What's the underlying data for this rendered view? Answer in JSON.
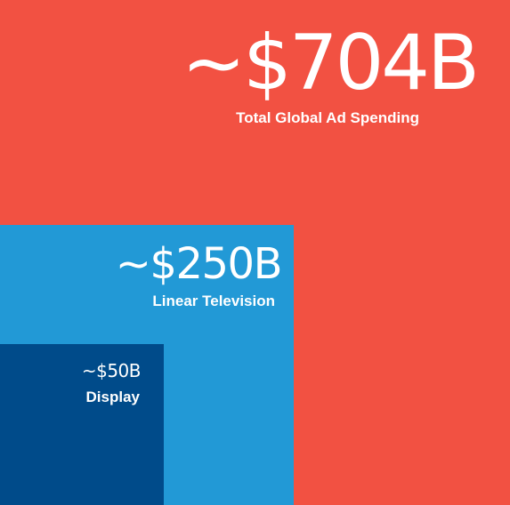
{
  "chart_data": {
    "type": "nested-squares",
    "title": "",
    "items": [
      {
        "label": "Total Global Ad Spending",
        "value_text": "~$704B",
        "value": 704,
        "color": "#f25142"
      },
      {
        "label": "Linear Television",
        "value_text": "~$250B",
        "value": 250,
        "color": "#2299d6"
      },
      {
        "label": "Display",
        "value_text": "~$50B",
        "value": 50,
        "color": "#004b8a"
      }
    ]
  }
}
